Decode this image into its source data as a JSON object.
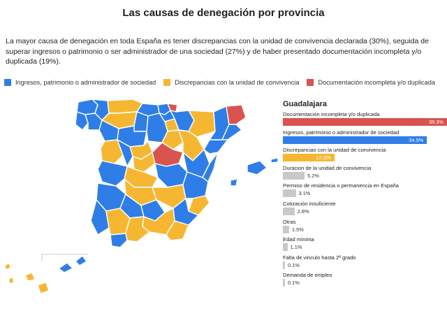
{
  "title": "Las causas de denegación por provincia",
  "subtitle": "La mayor causa de denegación en toda España es tener discrepancias con la unidad de convivencia declarada (30%), seguida de superar ingresos o patrimonio o ser administrador de una sociedad (27%) y de haber presentado documentación incompleta y/o duplicada (19%).",
  "legend": [
    {
      "label": "Ingresos, patrimonio o administrador de sociedad",
      "color": "#2f7ee8",
      "icon": "blue-square-icon"
    },
    {
      "label": "Discrepancias con la unidad de convivencia",
      "color": "#f5b732",
      "icon": "yellow-square-icon"
    },
    {
      "label": "Documentación incompleta y/o duplicada",
      "color": "#d9534f",
      "icon": "red-square-icon"
    }
  ],
  "panel": {
    "province": "Guadalajara",
    "bars": [
      {
        "label": "Documentación incompleta y/o duplicada",
        "value": 39.3,
        "value_text": "39.3%",
        "color": "#d9534f"
      },
      {
        "label": "Ingresos, patrimonio o administrador de sociedad",
        "value": 34.5,
        "value_text": "34.5%",
        "color": "#2f7ee8"
      },
      {
        "label": "Discrepancias con la unidad de convivencia",
        "value": 12.3,
        "value_text": "12.3%",
        "color": "#f5b732"
      },
      {
        "label": "Duracion de la unidad de convivencia",
        "value": 5.2,
        "value_text": "5.2%",
        "color": "#c8c8c8"
      },
      {
        "label": "Permiso de residencia o permanencia en España",
        "value": 3.1,
        "value_text": "3.1%",
        "color": "#c8c8c8"
      },
      {
        "label": "Cotización insuficiente",
        "value": 2.8,
        "value_text": "2.8%",
        "color": "#c8c8c8"
      },
      {
        "label": "Otras",
        "value": 1.5,
        "value_text": "1.5%",
        "color": "#c8c8c8"
      },
      {
        "label": "Edad mínima",
        "value": 1.1,
        "value_text": "1.1%",
        "color": "#c8c8c8"
      },
      {
        "label": "Falta de vinculo hasta 2º grado",
        "value": 0.1,
        "value_text": "0.1%",
        "color": "#c8c8c8"
      },
      {
        "label": "Demanda de empleo",
        "value": 0.1,
        "value_text": "0.1%",
        "color": "#c8c8c8"
      }
    ],
    "xlim": [
      0,
      39.3
    ]
  },
  "chart_data": {
    "type": "bar",
    "title": "Guadalajara",
    "categories": [
      "Documentación incompleta y/o duplicada",
      "Ingresos, patrimonio o administrador de sociedad",
      "Discrepancias con la unidad de convivencia",
      "Duracion de la unidad de convivencia",
      "Permiso de residencia o permanencia en España",
      "Cotización insuficiente",
      "Otras",
      "Edad mínima",
      "Falta de vinculo hasta 2º grado",
      "Demanda de empleo"
    ],
    "values": [
      39.3,
      34.5,
      12.3,
      5.2,
      3.1,
      2.8,
      1.5,
      1.1,
      0.1,
      0.1
    ],
    "orientation": "horizontal",
    "xlim": [
      0,
      39.3
    ]
  },
  "map": {
    "province_colors": {
      "blue": "#2f7ee8",
      "yellow": "#f5b732",
      "red": "#d9534f",
      "border": "#ffffff"
    }
  }
}
